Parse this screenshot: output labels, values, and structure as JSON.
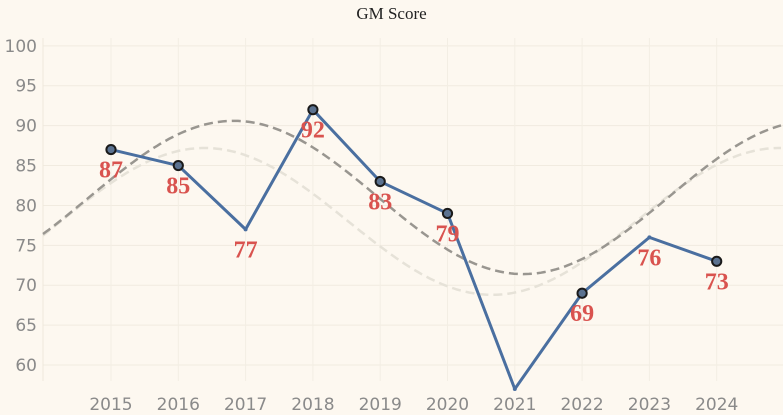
{
  "chart_data": {
    "type": "line",
    "title": "GM Score",
    "xlabel": "",
    "ylabel": "",
    "x": [
      "2015",
      "2016",
      "2017",
      "2018",
      "2019",
      "2020",
      "2021",
      "2022",
      "2023",
      "2024"
    ],
    "ylim": [
      58,
      101
    ],
    "yticks": [
      60,
      65,
      70,
      75,
      80,
      85,
      90,
      95,
      100
    ],
    "grid": true,
    "series": [
      {
        "values": [
          87,
          85,
          77,
          92,
          83,
          79,
          57,
          69,
          76,
          73
        ],
        "data_labels": [
          "87",
          "85",
          "77",
          "92",
          "83",
          "79",
          "",
          "69",
          "76",
          "73"
        ],
        "marker_on": [
          true,
          true,
          false,
          true,
          true,
          true,
          false,
          true,
          false,
          true
        ],
        "color": "#4a6fa0"
      }
    ],
    "trend_lines": [
      {
        "color": "#999690",
        "style": "dashed",
        "kind": "polynomial fit"
      },
      {
        "color": "#e6e2d8",
        "style": "dashed",
        "kind": "polynomial fit"
      }
    ],
    "colors": {
      "background": "#fdf8f0",
      "label": "#d9534f",
      "marker_fill": "#5b7290",
      "marker_edge": "#1a1a1a"
    }
  }
}
